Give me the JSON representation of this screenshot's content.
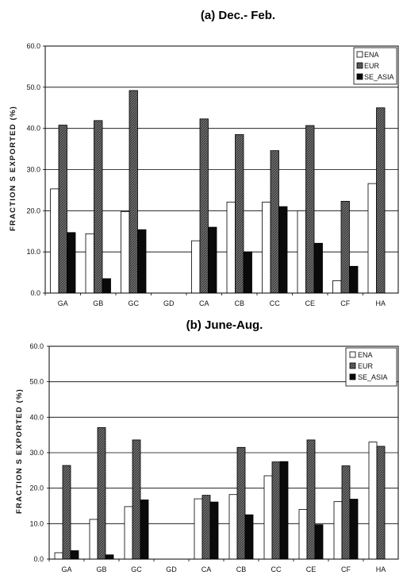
{
  "chart_data": [
    {
      "type": "bar",
      "title": "(a) Dec.- Feb.",
      "ylabel": "FRACTION S EXPORTED (%)",
      "xlabel": "",
      "ylim": [
        0,
        60
      ],
      "yticks": [
        "0.0",
        "10.0",
        "20.0",
        "30.0",
        "40.0",
        "50.0",
        "60.0"
      ],
      "grid": true,
      "legend_position": "top-right",
      "categories": [
        "GA",
        "GB",
        "GC",
        "GD",
        "CA",
        "CB",
        "CC",
        "CE",
        "CF",
        "HA"
      ],
      "series": [
        {
          "name": "ENA",
          "values": [
            25.3,
            14.4,
            19.8,
            null,
            12.7,
            22.1,
            22.1,
            20.0,
            3.0,
            26.6
          ]
        },
        {
          "name": "EUR",
          "values": [
            40.8,
            41.9,
            49.2,
            null,
            42.3,
            38.5,
            34.6,
            40.7,
            22.3,
            45.0
          ]
        },
        {
          "name": "SE_ASIA",
          "values": [
            14.7,
            3.5,
            15.4,
            null,
            16.0,
            10.0,
            21.0,
            12.1,
            6.5,
            null
          ]
        }
      ]
    },
    {
      "type": "bar",
      "title": "(b) June-Aug.",
      "ylabel": "FRACTION S EXPORTED (%)",
      "xlabel": "",
      "ylim": [
        0,
        60
      ],
      "yticks": [
        "0.0",
        "10.0",
        "20.0",
        "30.0",
        "40.0",
        "50.0",
        "60.0"
      ],
      "grid": true,
      "legend_position": "top-right",
      "categories": [
        "GA",
        "GB",
        "GC",
        "GD",
        "CA",
        "CB",
        "CC",
        "CE",
        "CF",
        "HA"
      ],
      "series": [
        {
          "name": "ENA",
          "values": [
            1.8,
            11.2,
            14.8,
            null,
            17.0,
            18.2,
            23.5,
            14.0,
            16.2,
            33.0
          ]
        },
        {
          "name": "EUR",
          "values": [
            26.4,
            37.1,
            33.6,
            null,
            18.0,
            31.5,
            27.4,
            33.6,
            26.3,
            31.8
          ]
        },
        {
          "name": "SE_ASIA",
          "values": [
            2.4,
            1.2,
            16.7,
            null,
            16.1,
            12.5,
            27.5,
            9.7,
            16.9,
            null
          ]
        }
      ]
    }
  ],
  "colors": {
    "ENA": "#ffffff",
    "EUR": "#555555",
    "SE_ASIA": "#0a0a0a",
    "grid": "#000000",
    "axis": "#000000"
  }
}
